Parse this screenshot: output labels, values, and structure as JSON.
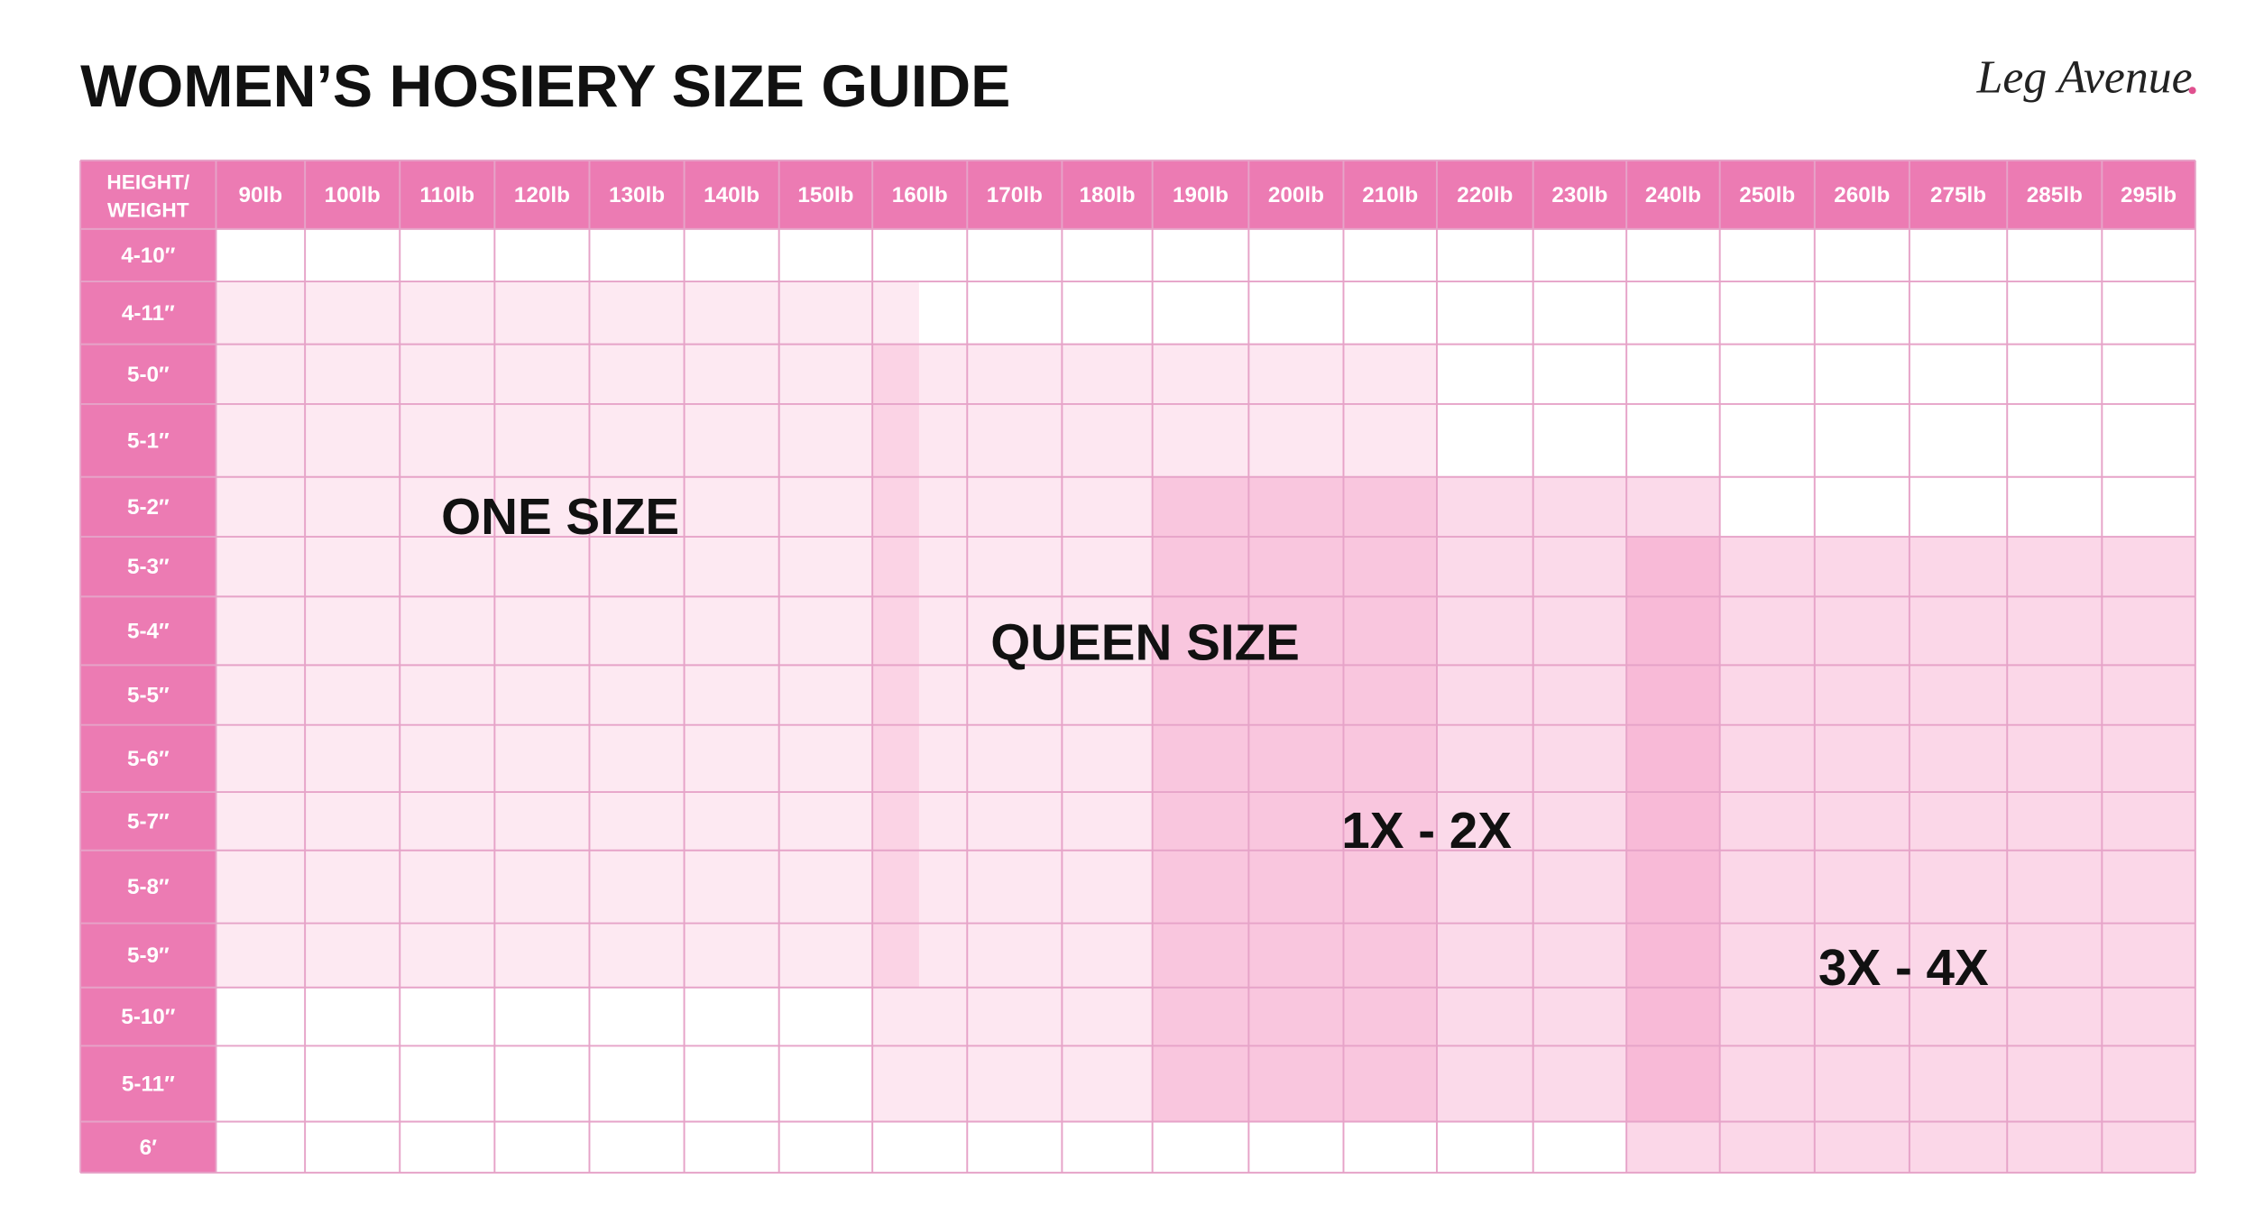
{
  "header": {
    "title": "WOMEN’S HOSIERY SIZE GUIDE",
    "brand": "Leg Avenue"
  },
  "table": {
    "corner": [
      "HEIGHT/",
      "WEIGHT"
    ],
    "weights": [
      "90lb",
      "100lb",
      "110lb",
      "120lb",
      "130lb",
      "140lb",
      "150lb",
      "160lb",
      "170lb",
      "180lb",
      "190lb",
      "200lb",
      "210lb",
      "220lb",
      "230lb",
      "240lb",
      "250lb",
      "260lb",
      "275lb",
      "285lb",
      "295lb"
    ],
    "heights": [
      "4-10″",
      "4-11″",
      "5-0″",
      "5-1″",
      "5-2″",
      "5-3″",
      "5-4″",
      "5-5″",
      "5-6″",
      "5-7″",
      "5-8″",
      "5-9″",
      "5-10″",
      "5-11″",
      "6′"
    ]
  },
  "sizes": [
    "ONE SIZE",
    "QUEEN SIZE",
    "1X - 2X",
    "3X - 4X"
  ]
}
